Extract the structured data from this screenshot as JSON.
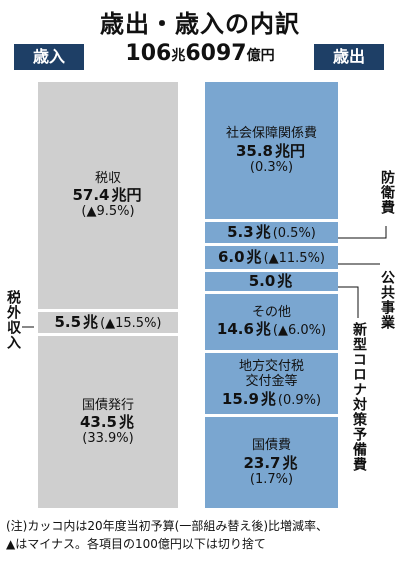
{
  "title": "歳出・歳入の内訳",
  "badges": {
    "revenue": "歳入",
    "expenditure": "歳出"
  },
  "total": {
    "number": "106",
    "chou": "兆",
    "rest": "6097",
    "unit": "億円"
  },
  "chart_data": {
    "type": "stacked-bar",
    "unit": "兆円",
    "revenue": [
      {
        "name": "税収",
        "value": 57.4,
        "value_text": "57.4",
        "unit": "兆円",
        "change": "(▲9.5%)"
      },
      {
        "name": "税外収入",
        "value": 5.5,
        "value_text": "5.5",
        "unit": "兆",
        "change": "(▲15.5%)"
      },
      {
        "name": "国債発行",
        "value": 43.5,
        "value_text": "43.5",
        "unit": "兆",
        "change": "(33.9%)"
      }
    ],
    "expenditure": [
      {
        "name": "社会保障関係費",
        "value": 35.8,
        "value_text": "35.8",
        "unit": "兆円",
        "change": "(0.3%)"
      },
      {
        "name": "防衛費",
        "value": 5.3,
        "value_text": "5.3",
        "unit": "兆",
        "change": "(0.5%)"
      },
      {
        "name": "公共事業",
        "value": 6.0,
        "value_text": "6.0",
        "unit": "兆",
        "change": "(▲11.5%)"
      },
      {
        "name": "新型コロナ対策予備費",
        "value": 5.0,
        "value_text": "5.0",
        "unit": "兆",
        "change": ""
      },
      {
        "name": "その他",
        "value": 14.6,
        "value_text": "14.6",
        "unit": "兆",
        "change": "(▲6.0%)"
      },
      {
        "name": "地方交付税交付金等",
        "line1": "地方交付税",
        "line2": "交付金等",
        "value": 15.9,
        "value_text": "15.9",
        "unit": "兆",
        "change": "(0.9%)"
      },
      {
        "name": "国債費",
        "value": 23.7,
        "value_text": "23.7",
        "unit": "兆",
        "change": "(1.7%)"
      }
    ]
  },
  "note": {
    "line1": "(注)カッコ内は20年度当初予算(一部組み替え後)比増減率、",
    "line2": "▲はマイナス。各項目の100億円以下は切り捨て"
  },
  "colors": {
    "revenue": "#cfcfcf",
    "expenditure": "#7aa6d0",
    "badge": "#1e3f66"
  }
}
